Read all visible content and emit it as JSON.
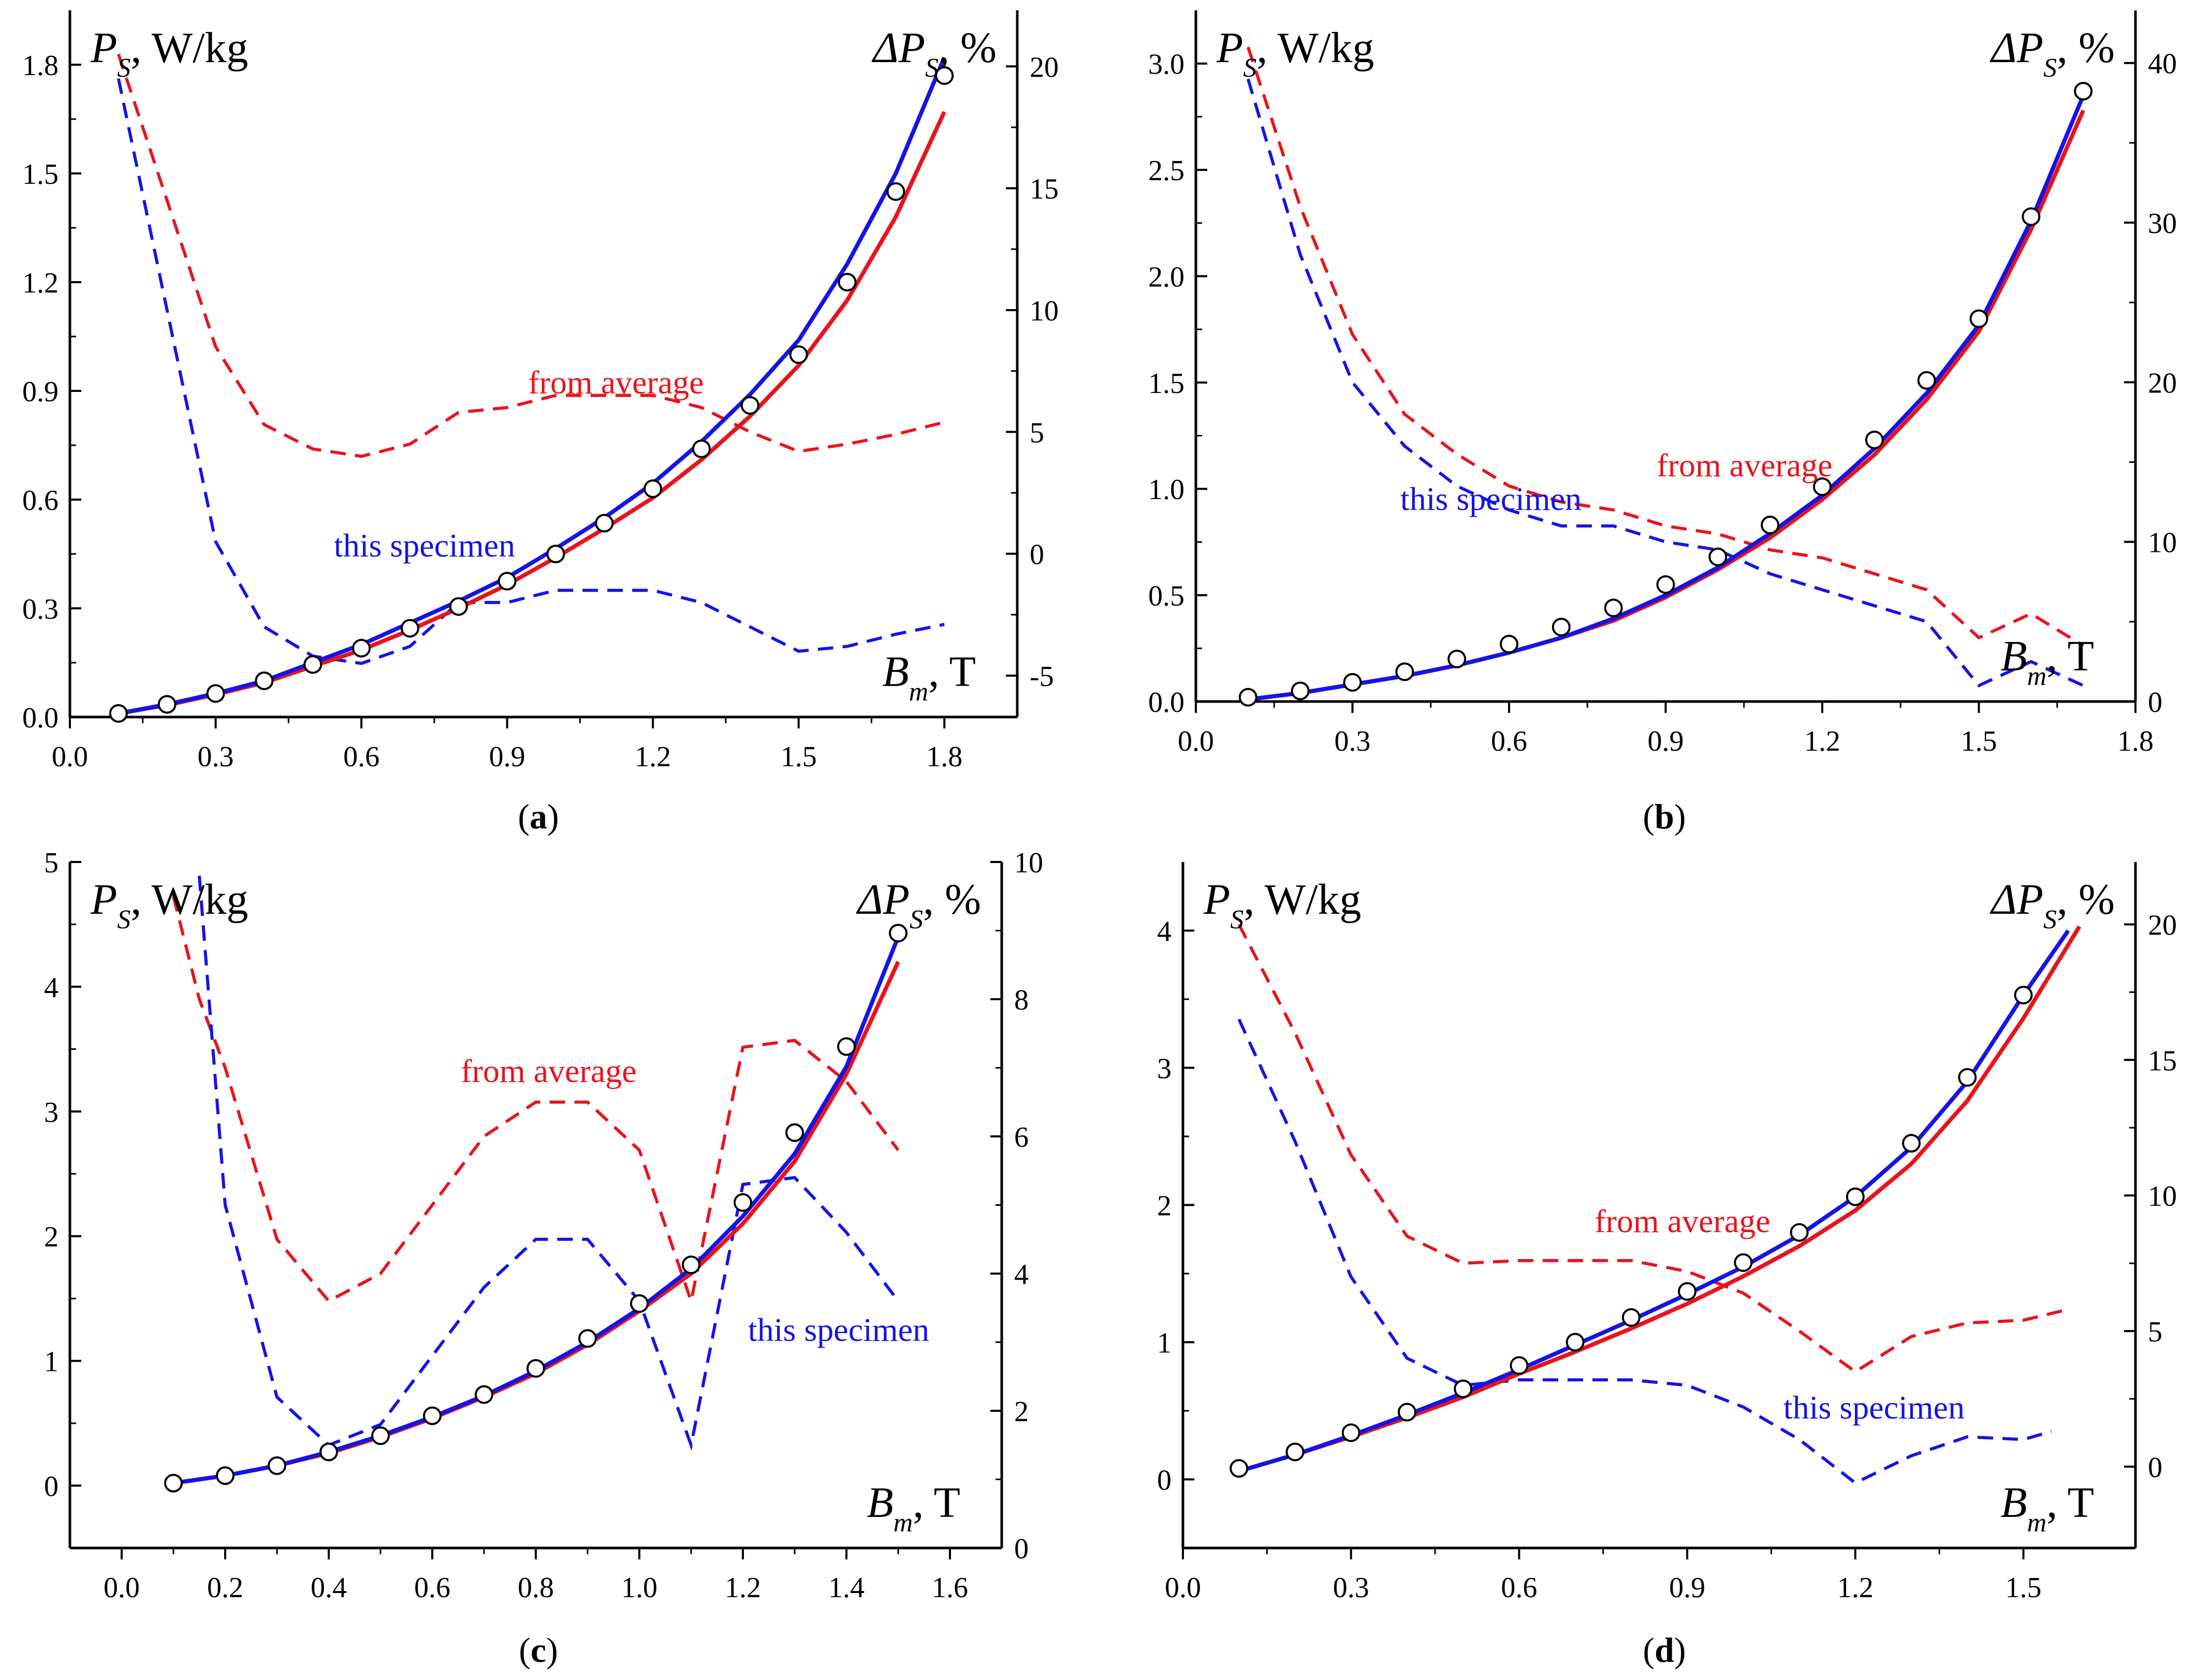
{
  "colors": {
    "series_red": "#e8141c",
    "series_blue": "#1414e6",
    "axis": "#000000",
    "marker": "#000000"
  },
  "chart_data": [
    {
      "panel": "a",
      "caption": {
        "open": "(",
        "letter": "a",
        "close": ")"
      },
      "type": "line",
      "left_title": {
        "main": "P",
        "sub": "S",
        "rest": ", W/kg"
      },
      "right_title": {
        "main": "ΔP",
        "sub": "S",
        "rest": ", %"
      },
      "x_title": {
        "main": "B",
        "sub": "m",
        "rest": ", T"
      },
      "xlim": [
        0,
        1.95
      ],
      "ylim_left": [
        0,
        1.95
      ],
      "ylim_right": [
        -6.7,
        22.3
      ],
      "xticks": [
        0.0,
        0.3,
        0.6,
        0.9,
        1.2,
        1.5,
        1.8
      ],
      "xtick_labels": [
        "0.0",
        "0.3",
        "0.6",
        "0.9",
        "1.2",
        "1.5",
        "1.8"
      ],
      "yticks_left": [
        0.0,
        0.3,
        0.6,
        0.9,
        1.2,
        1.5,
        1.8
      ],
      "ytick_labels_left": [
        "0.0",
        "0.3",
        "0.6",
        "0.9",
        "1.2",
        "1.5",
        "1.8"
      ],
      "yticks_right": [
        -5,
        0,
        5,
        10,
        15,
        20
      ],
      "ytick_labels_right": [
        "-5",
        "0",
        "5",
        "10",
        "15",
        "20"
      ],
      "measured": {
        "x": [
          0.1,
          0.2,
          0.3,
          0.4,
          0.5,
          0.6,
          0.7,
          0.8,
          0.9,
          1.0,
          1.1,
          1.2,
          1.3,
          1.4,
          1.5,
          1.6,
          1.7,
          1.8
        ],
        "y": [
          0.01,
          0.035,
          0.065,
          0.1,
          0.145,
          0.19,
          0.245,
          0.305,
          0.375,
          0.45,
          0.535,
          0.63,
          0.74,
          0.86,
          1.0,
          1.2,
          1.45,
          1.77
        ]
      },
      "model_blue": {
        "x": [
          0.1,
          0.2,
          0.3,
          0.4,
          0.5,
          0.6,
          0.7,
          0.8,
          0.9,
          1.0,
          1.1,
          1.2,
          1.3,
          1.4,
          1.5,
          1.6,
          1.7,
          1.8
        ],
        "y": [
          0.01,
          0.035,
          0.065,
          0.1,
          0.15,
          0.2,
          0.26,
          0.32,
          0.385,
          0.465,
          0.55,
          0.645,
          0.76,
          0.89,
          1.04,
          1.25,
          1.5,
          1.82
        ]
      },
      "model_red": {
        "x": [
          0.1,
          0.2,
          0.3,
          0.4,
          0.5,
          0.6,
          0.7,
          0.8,
          0.9,
          1.0,
          1.1,
          1.2,
          1.3,
          1.4,
          1.5,
          1.6,
          1.7,
          1.8
        ],
        "y": [
          0.01,
          0.033,
          0.062,
          0.095,
          0.14,
          0.185,
          0.24,
          0.3,
          0.365,
          0.44,
          0.52,
          0.605,
          0.71,
          0.83,
          0.97,
          1.15,
          1.38,
          1.67
        ]
      },
      "dev_red": {
        "label": "from average",
        "x": [
          0.1,
          0.2,
          0.3,
          0.4,
          0.5,
          0.6,
          0.7,
          0.8,
          0.9,
          1.0,
          1.1,
          1.2,
          1.3,
          1.4,
          1.5,
          1.6,
          1.7,
          1.8
        ],
        "y": [
          20.5,
          14.5,
          8.5,
          5.3,
          4.3,
          4.0,
          4.5,
          5.8,
          6.0,
          6.5,
          6.5,
          6.5,
          6.0,
          5.0,
          4.2,
          4.5,
          4.9,
          5.4
        ]
      },
      "dev_blue": {
        "label": "this specimen",
        "x": [
          0.1,
          0.2,
          0.3,
          0.4,
          0.5,
          0.6,
          0.7,
          0.8,
          0.9,
          1.0,
          1.1,
          1.2,
          1.3,
          1.4,
          1.5,
          1.6,
          1.7,
          1.8
        ],
        "y": [
          19.5,
          10.0,
          0.5,
          -3.0,
          -4.2,
          -4.5,
          -3.8,
          -2.0,
          -2.0,
          -1.5,
          -1.5,
          -1.5,
          -2.0,
          -3.0,
          -4.0,
          -3.8,
          -3.3,
          -2.9
        ]
      }
    },
    {
      "panel": "b",
      "caption": {
        "open": "(",
        "letter": "b",
        "close": ")"
      },
      "type": "line",
      "left_title": {
        "main": "P",
        "sub": "S",
        "rest": ", W/kg"
      },
      "right_title": {
        "main": "ΔP",
        "sub": "S",
        "rest": ", %"
      },
      "x_title": {
        "main": "B",
        "sub": "m",
        "rest": ", T"
      },
      "xlim": [
        0,
        1.8
      ],
      "ylim_left": [
        0,
        3.25
      ],
      "ylim_right": [
        0,
        43.3
      ],
      "xticks": [
        0.0,
        0.3,
        0.6,
        0.9,
        1.2,
        1.5,
        1.8
      ],
      "xtick_labels": [
        "0.0",
        "0.3",
        "0.6",
        "0.9",
        "1.2",
        "1.5",
        "1.8"
      ],
      "yticks_left": [
        0.0,
        0.5,
        1.0,
        1.5,
        2.0,
        2.5,
        3.0
      ],
      "ytick_labels_left": [
        "0.0",
        "0.5",
        "1.0",
        "1.5",
        "2.0",
        "2.5",
        "3.0"
      ],
      "yticks_right": [
        0,
        10,
        20,
        30,
        40
      ],
      "ytick_labels_right": [
        "0",
        "10",
        "20",
        "30",
        "40"
      ],
      "measured": {
        "x": [
          0.1,
          0.2,
          0.3,
          0.4,
          0.5,
          0.6,
          0.7,
          0.8,
          0.9,
          1.0,
          1.1,
          1.2,
          1.3,
          1.4,
          1.5,
          1.6,
          1.7
        ],
        "y": [
          0.02,
          0.05,
          0.09,
          0.14,
          0.2,
          0.27,
          0.35,
          0.44,
          0.55,
          0.68,
          0.83,
          1.01,
          1.23,
          1.51,
          1.8,
          2.28,
          2.87
        ]
      },
      "model_blue": {
        "x": [
          0.1,
          0.2,
          0.3,
          0.4,
          0.5,
          0.6,
          0.7,
          0.8,
          0.9,
          1.0,
          1.1,
          1.2,
          1.3,
          1.4,
          1.5,
          1.6,
          1.7
        ],
        "y": [
          0.01,
          0.04,
          0.08,
          0.12,
          0.17,
          0.23,
          0.3,
          0.39,
          0.5,
          0.63,
          0.79,
          0.97,
          1.19,
          1.45,
          1.77,
          2.26,
          2.85
        ]
      },
      "model_red": {
        "x": [
          0.1,
          0.2,
          0.3,
          0.4,
          0.5,
          0.6,
          0.7,
          0.8,
          0.9,
          1.0,
          1.1,
          1.2,
          1.3,
          1.4,
          1.5,
          1.6,
          1.7
        ],
        "y": [
          0.01,
          0.04,
          0.08,
          0.12,
          0.17,
          0.23,
          0.3,
          0.38,
          0.49,
          0.62,
          0.77,
          0.95,
          1.16,
          1.42,
          1.74,
          2.22,
          2.78
        ]
      },
      "dev_red": {
        "label": "from average",
        "x": [
          0.1,
          0.2,
          0.3,
          0.4,
          0.5,
          0.6,
          0.7,
          0.8,
          0.9,
          1.0,
          1.1,
          1.2,
          1.3,
          1.4,
          1.5,
          1.6,
          1.7
        ],
        "y": [
          41,
          31,
          23,
          18,
          15.5,
          13.5,
          12.5,
          12.0,
          11.0,
          10.5,
          9.5,
          9.0,
          8.0,
          7.0,
          4.0,
          5.5,
          3.5
        ]
      },
      "dev_blue": {
        "label": "this specimen",
        "x": [
          0.1,
          0.2,
          0.3,
          0.4,
          0.5,
          0.6,
          0.7,
          0.8,
          0.9,
          1.0,
          1.1,
          1.2,
          1.3,
          1.4,
          1.5,
          1.6,
          1.7
        ],
        "y": [
          39,
          28,
          20,
          16,
          13.5,
          12.0,
          11.0,
          11.0,
          10.0,
          9.5,
          8.0,
          7.0,
          6.0,
          5.0,
          1.0,
          2.5,
          1.0
        ]
      }
    },
    {
      "panel": "c",
      "caption": {
        "open": "(",
        "letter": "c",
        "close": ")"
      },
      "type": "line",
      "left_title": {
        "main": "P",
        "sub": "S",
        "rest": ", W/kg"
      },
      "right_title": {
        "main": "ΔP",
        "sub": "S",
        "rest": ", %"
      },
      "x_title": {
        "main": "B",
        "sub": "m",
        "rest": ", T"
      },
      "xlim": [
        -0.1,
        1.7
      ],
      "ylim_left": [
        -0.5,
        5.0
      ],
      "ylim_right": [
        0,
        10
      ],
      "xticks": [
        0.0,
        0.2,
        0.4,
        0.6,
        0.8,
        1.0,
        1.2,
        1.4,
        1.6
      ],
      "xtick_labels": [
        "0.0",
        "0.2",
        "0.4",
        "0.6",
        "0.8",
        "1.0",
        "1.2",
        "1.4",
        "1.6"
      ],
      "yticks_left": [
        0,
        1,
        2,
        3,
        4,
        5
      ],
      "ytick_labels_left": [
        "0",
        "1",
        "2",
        "3",
        "4",
        "5"
      ],
      "yticks_right": [
        0,
        2,
        4,
        6,
        8,
        10
      ],
      "ytick_labels_right": [
        "0",
        "2",
        "4",
        "6",
        "8",
        "10"
      ],
      "measured": {
        "x": [
          0.1,
          0.2,
          0.3,
          0.4,
          0.5,
          0.6,
          0.7,
          0.8,
          0.9,
          1.0,
          1.1,
          1.2,
          1.3,
          1.4,
          1.5
        ],
        "y": [
          0.02,
          0.08,
          0.16,
          0.27,
          0.4,
          0.56,
          0.73,
          0.94,
          1.18,
          1.46,
          1.77,
          2.27,
          2.83,
          3.52,
          4.43
        ]
      },
      "model_blue": {
        "x": [
          0.1,
          0.2,
          0.3,
          0.4,
          0.5,
          0.6,
          0.7,
          0.8,
          0.9,
          1.0,
          1.1,
          1.2,
          1.3,
          1.4,
          1.5
        ],
        "y": [
          0.02,
          0.08,
          0.16,
          0.27,
          0.4,
          0.55,
          0.72,
          0.92,
          1.15,
          1.42,
          1.74,
          2.16,
          2.66,
          3.36,
          4.4
        ]
      },
      "model_red": {
        "x": [
          0.1,
          0.2,
          0.3,
          0.4,
          0.5,
          0.6,
          0.7,
          0.8,
          0.9,
          1.0,
          1.1,
          1.2,
          1.3,
          1.4,
          1.5
        ],
        "y": [
          0.02,
          0.08,
          0.16,
          0.26,
          0.39,
          0.54,
          0.71,
          0.9,
          1.13,
          1.4,
          1.7,
          2.1,
          2.6,
          3.3,
          4.2
        ]
      },
      "dev_red": {
        "label": "from average",
        "x": [
          0.1,
          0.15,
          0.2,
          0.3,
          0.4,
          0.5,
          0.6,
          0.7,
          0.8,
          0.9,
          1.0,
          1.1,
          1.2,
          1.3,
          1.4,
          1.5
        ],
        "y": [
          9.5,
          8.0,
          7.0,
          4.5,
          3.6,
          4.0,
          5.0,
          6.0,
          6.5,
          6.5,
          5.8,
          3.6,
          7.3,
          7.4,
          6.8,
          5.8
        ]
      },
      "dev_blue": {
        "label": "this specimen",
        "x": [
          0.15,
          0.2,
          0.3,
          0.4,
          0.5,
          0.6,
          0.7,
          0.8,
          0.9,
          1.0,
          1.1,
          1.2,
          1.3,
          1.4,
          1.5
        ],
        "y": [
          9.8,
          5.0,
          2.2,
          1.5,
          1.8,
          2.8,
          3.8,
          4.5,
          4.5,
          3.6,
          1.5,
          5.3,
          5.4,
          4.6,
          3.6
        ]
      }
    },
    {
      "panel": "d",
      "caption": {
        "open": "(",
        "letter": "d",
        "close": ")"
      },
      "type": "line",
      "left_title": {
        "main": "P",
        "sub": "S",
        "rest": ", W/kg"
      },
      "right_title": {
        "main": "ΔP",
        "sub": "S",
        "rest": ", %"
      },
      "x_title": {
        "main": "B",
        "sub": "m",
        "rest": ", T"
      },
      "xlim": [
        0,
        1.7
      ],
      "ylim_left": [
        -0.5,
        4.5
      ],
      "ylim_right": [
        -3.0,
        22.3
      ],
      "xticks": [
        0.0,
        0.3,
        0.6,
        0.9,
        1.2,
        1.5
      ],
      "xtick_labels": [
        "0.0",
        "0.3",
        "0.6",
        "0.9",
        "1.2",
        "1.5"
      ],
      "yticks_left": [
        0,
        1,
        2,
        3,
        4
      ],
      "ytick_labels_left": [
        "0",
        "1",
        "2",
        "3",
        "4"
      ],
      "yticks_right": [
        0,
        5,
        10,
        15,
        20
      ],
      "ytick_labels_right": [
        "0",
        "5",
        "10",
        "15",
        "20"
      ],
      "measured": {
        "x": [
          0.1,
          0.2,
          0.3,
          0.4,
          0.5,
          0.6,
          0.7,
          0.8,
          0.9,
          1.0,
          1.1,
          1.2,
          1.3,
          1.4,
          1.5
        ],
        "y": [
          0.08,
          0.2,
          0.34,
          0.49,
          0.66,
          0.83,
          1.0,
          1.18,
          1.37,
          1.58,
          1.8,
          2.06,
          2.45,
          2.93,
          3.53
        ]
      },
      "model_blue": {
        "x": [
          0.1,
          0.2,
          0.3,
          0.4,
          0.5,
          0.6,
          0.7,
          0.8,
          0.9,
          1.0,
          1.1,
          1.2,
          1.3,
          1.4,
          1.5,
          1.58
        ],
        "y": [
          0.06,
          0.18,
          0.32,
          0.47,
          0.63,
          0.8,
          0.98,
          1.16,
          1.35,
          1.55,
          1.78,
          2.06,
          2.42,
          2.9,
          3.53,
          4.0
        ]
      },
      "model_red": {
        "x": [
          0.1,
          0.2,
          0.3,
          0.4,
          0.5,
          0.6,
          0.7,
          0.8,
          0.9,
          1.0,
          1.1,
          1.2,
          1.3,
          1.4,
          1.5,
          1.6
        ],
        "y": [
          0.06,
          0.18,
          0.31,
          0.45,
          0.6,
          0.77,
          0.93,
          1.1,
          1.28,
          1.48,
          1.7,
          1.96,
          2.3,
          2.76,
          3.36,
          4.03
        ]
      },
      "dev_red": {
        "label": "from average",
        "x": [
          0.1,
          0.2,
          0.3,
          0.4,
          0.5,
          0.6,
          0.7,
          0.8,
          0.9,
          1.0,
          1.1,
          1.2,
          1.3,
          1.4,
          1.5,
          1.58
        ],
        "y": [
          20.0,
          16.0,
          11.5,
          8.5,
          7.5,
          7.6,
          7.6,
          7.6,
          7.2,
          6.4,
          5.0,
          3.5,
          4.8,
          5.3,
          5.4,
          5.8
        ]
      },
      "dev_blue": {
        "label": "this specimen",
        "x": [
          0.1,
          0.2,
          0.3,
          0.4,
          0.5,
          0.6,
          0.7,
          0.8,
          0.9,
          1.0,
          1.1,
          1.2,
          1.3,
          1.4,
          1.5,
          1.55
        ],
        "y": [
          16.5,
          12.0,
          7.0,
          4.0,
          3.0,
          3.2,
          3.2,
          3.2,
          3.0,
          2.2,
          1.0,
          -0.6,
          0.4,
          1.1,
          1.0,
          1.3
        ]
      }
    }
  ]
}
